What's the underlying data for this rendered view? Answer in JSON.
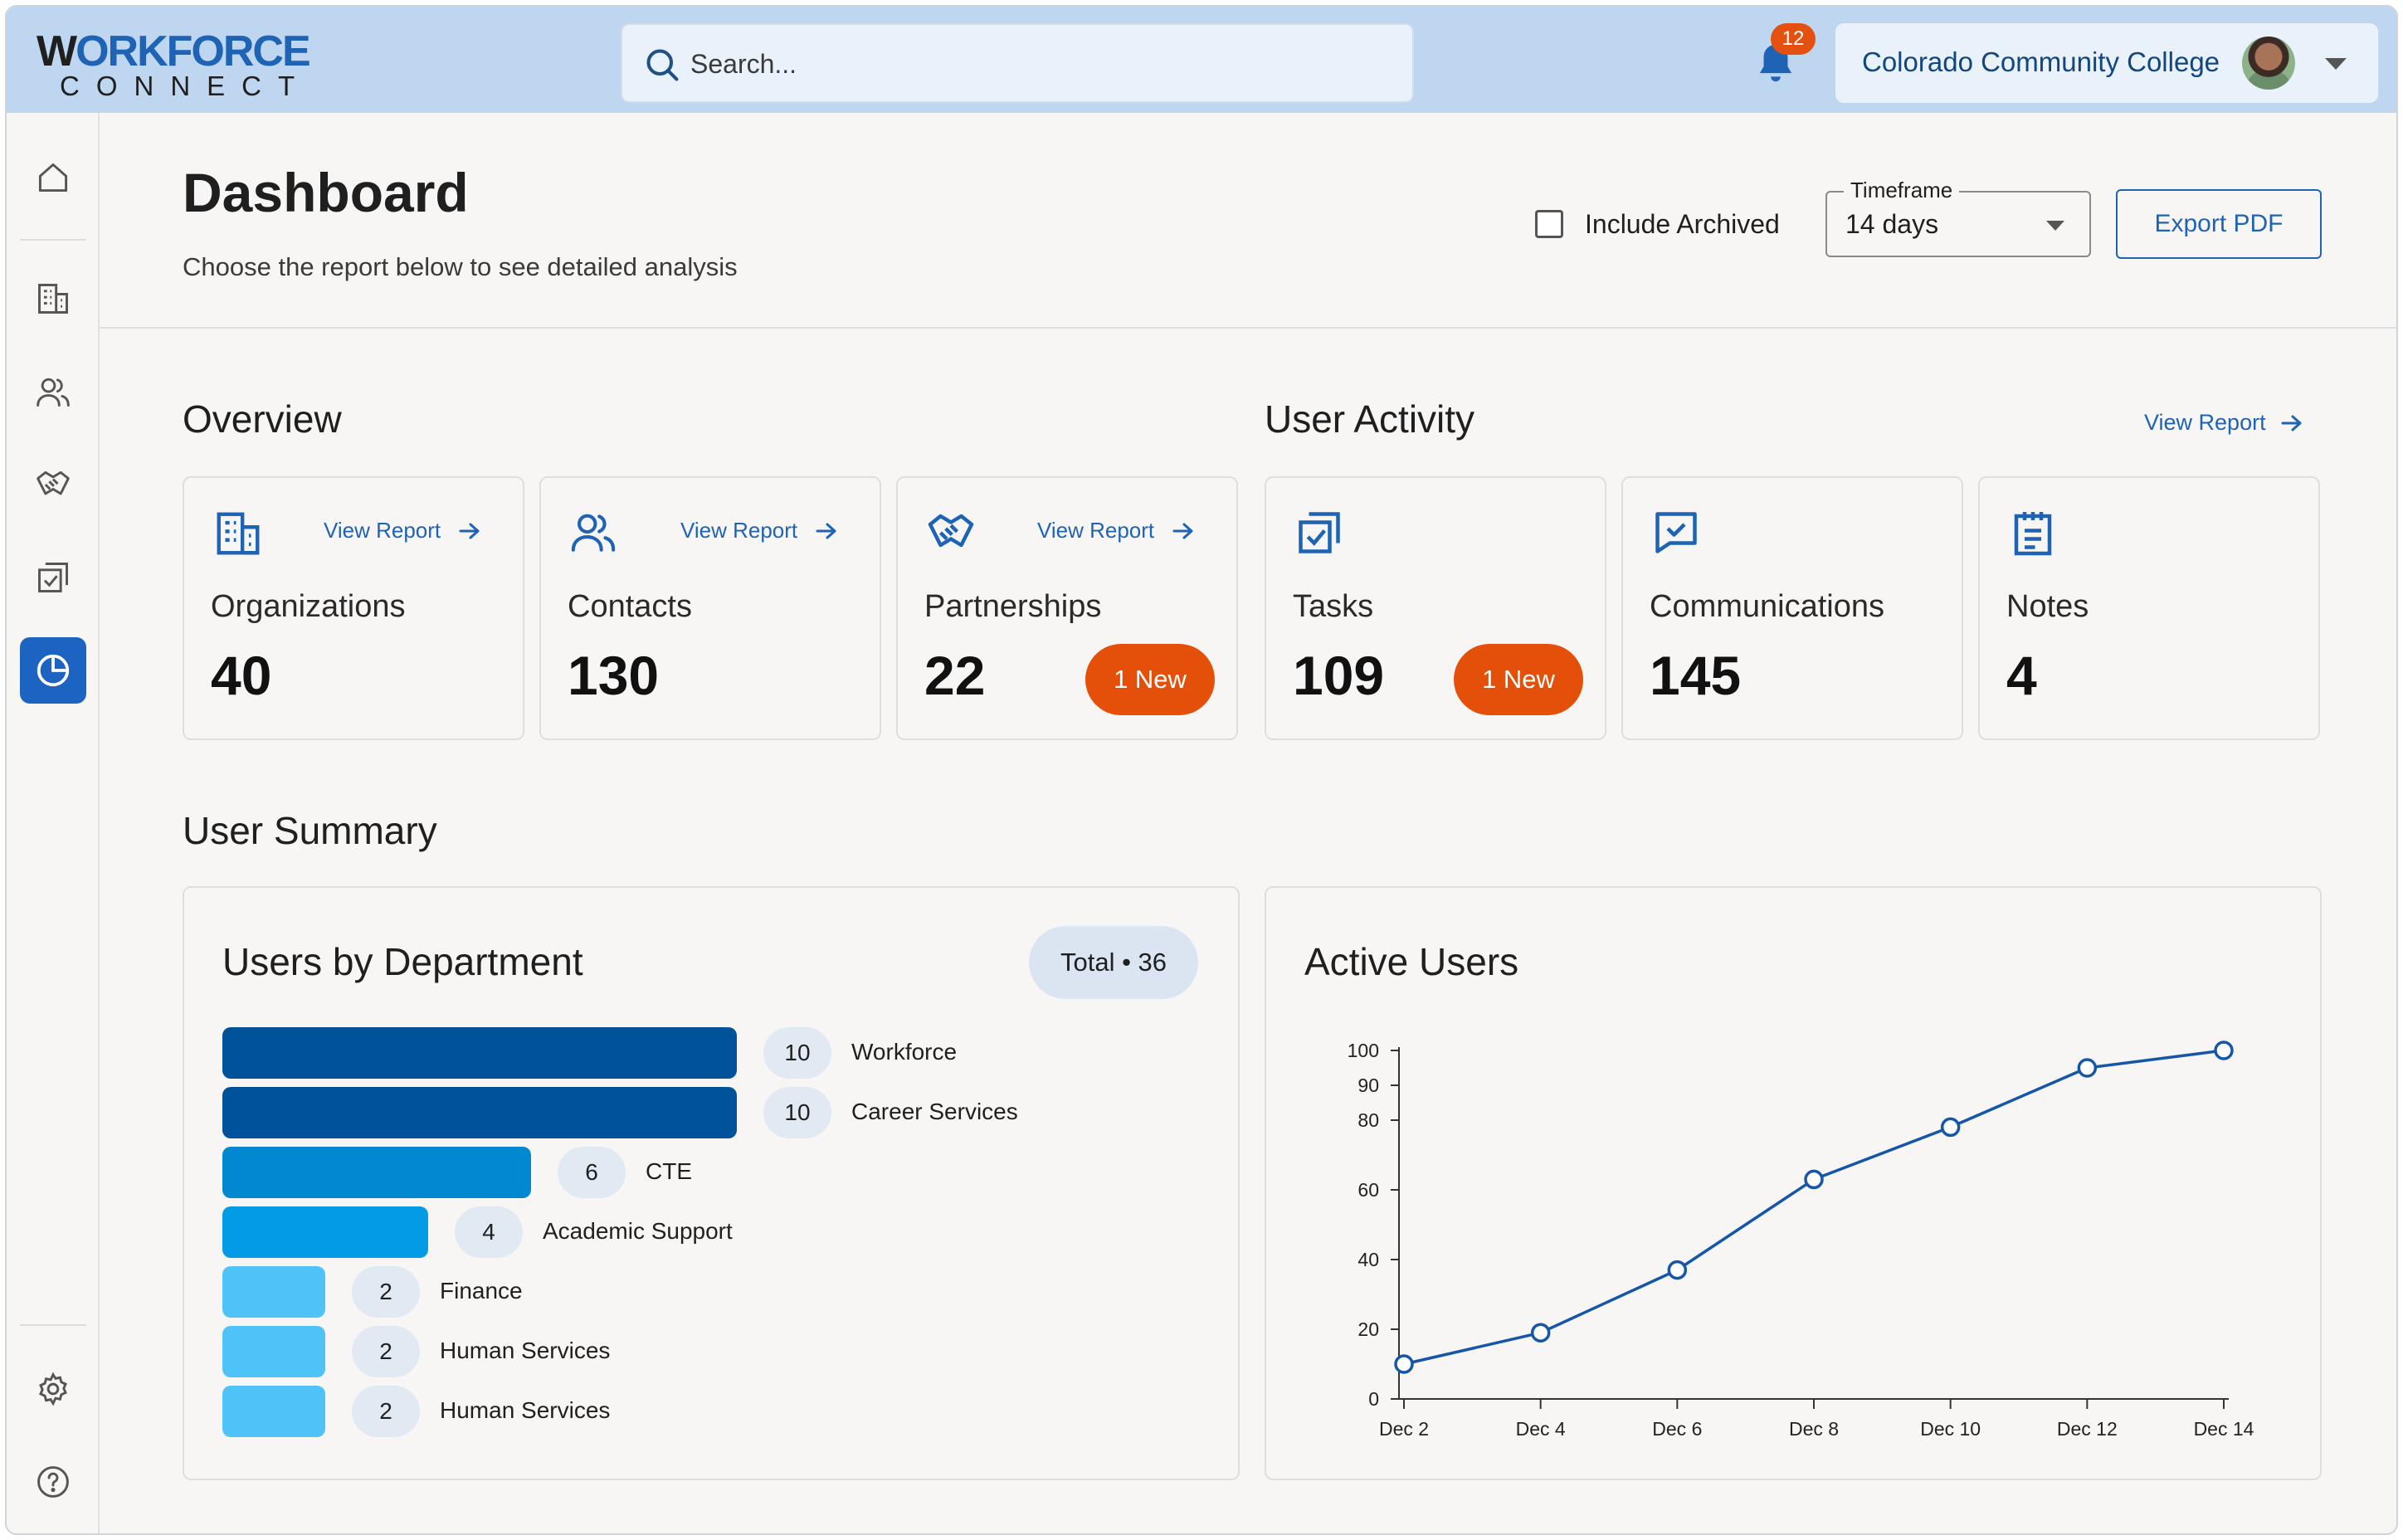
{
  "logo": {
    "word_top_left": "W",
    "word_top_o": "O",
    "word_top_rest": "RKFORCE",
    "word_bottom": "CONNECT"
  },
  "search": {
    "placeholder": "Search..."
  },
  "notifications": {
    "count": "12"
  },
  "org_switcher": {
    "name": "Colorado Community College"
  },
  "header": {
    "title": "Dashboard",
    "subtitle": "Choose the report below to see detailed analysis",
    "include_archived_label": "Include Archived",
    "timeframe_label": "Timeframe",
    "timeframe_value": "14 days",
    "export_label": "Export PDF"
  },
  "overview": {
    "title": "Overview",
    "cards": [
      {
        "label": "Organizations",
        "value": "40",
        "link": "View Report",
        "icon": "building-icon"
      },
      {
        "label": "Contacts",
        "value": "130",
        "link": "View Report",
        "icon": "users-icon"
      },
      {
        "label": "Partnerships",
        "value": "22",
        "link": "View Report",
        "badge": "1 New",
        "icon": "handshake-icon"
      }
    ]
  },
  "user_activity": {
    "title": "User Activity",
    "link": "View Report",
    "cards": [
      {
        "label": "Tasks",
        "value": "109",
        "badge": "1 New",
        "icon": "task-check-icon"
      },
      {
        "label": "Communications",
        "value": "145",
        "icon": "message-check-icon"
      },
      {
        "label": "Notes",
        "value": "4",
        "icon": "notepad-icon"
      }
    ]
  },
  "user_summary": {
    "title": "User Summary",
    "departments": {
      "title": "Users by Department",
      "total": "Total • 36"
    },
    "active_users": {
      "title": "Active Users"
    }
  },
  "colors": {
    "accent": "#1e63b4",
    "badge": "#e45009",
    "topbar": "#bed6ef",
    "bar_shades": [
      "#00539b",
      "#00539b",
      "#0288d1",
      "#039be5",
      "#4fc3f7",
      "#4fc3f7",
      "#4fc3f7"
    ]
  },
  "chart_data": [
    {
      "type": "bar",
      "orientation": "horizontal",
      "title": "Users by Department",
      "categories": [
        "Workforce",
        "Career Services",
        "CTE",
        "Academic Support",
        "Finance",
        "Human Services",
        "Human Services"
      ],
      "values": [
        10,
        10,
        6,
        4,
        2,
        2,
        2
      ]
    },
    {
      "type": "line",
      "title": "Active Users",
      "x": [
        "Dec 2",
        "Dec 4",
        "Dec 6",
        "Dec 8",
        "Dec 10",
        "Dec 12",
        "Dec 14"
      ],
      "values": [
        10,
        19,
        37,
        63,
        78,
        95,
        100
      ],
      "ylim": [
        0,
        100
      ],
      "yticks": [
        "0",
        "20",
        "40",
        "60",
        "80",
        "90",
        "100"
      ],
      "grid": false
    }
  ]
}
